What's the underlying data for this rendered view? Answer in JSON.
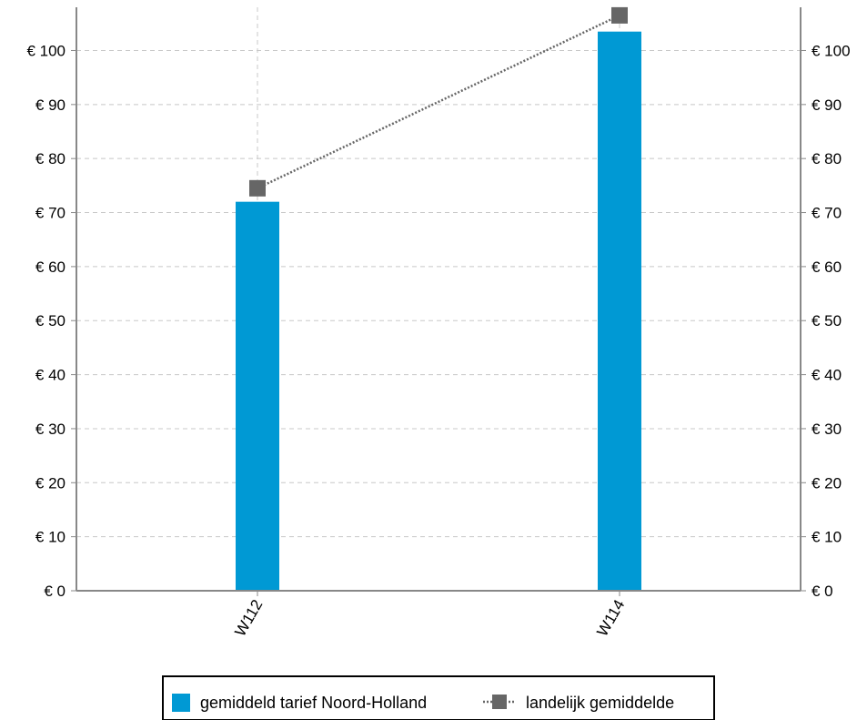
{
  "chart_data": {
    "type": "bar",
    "title": "",
    "xlabel": "",
    "ylabel": "",
    "categories": [
      "W112",
      "W114"
    ],
    "series": [
      {
        "name": "gemiddeld tarief Noord-Holland",
        "kind": "bar",
        "color": "#0099d4",
        "values": [
          72,
          103.5
        ]
      },
      {
        "name": "landelijk gemiddelde",
        "kind": "line",
        "line_style": "dotted",
        "marker": "square",
        "color": "#666666",
        "values": [
          74.5,
          106.5
        ]
      }
    ],
    "ylim": [
      0,
      108
    ],
    "y_ticks": [
      0,
      10,
      20,
      30,
      40,
      50,
      60,
      70,
      80,
      90,
      100
    ],
    "y_tick_labels": [
      "€ 0",
      "€ 10",
      "€ 20",
      "€ 30",
      "€ 40",
      "€ 50",
      "€ 60",
      "€ 70",
      "€ 80",
      "€ 90",
      "€ 100"
    ],
    "y_axes": [
      "left",
      "right"
    ],
    "grid": true,
    "legend_position": "bottom-center"
  }
}
